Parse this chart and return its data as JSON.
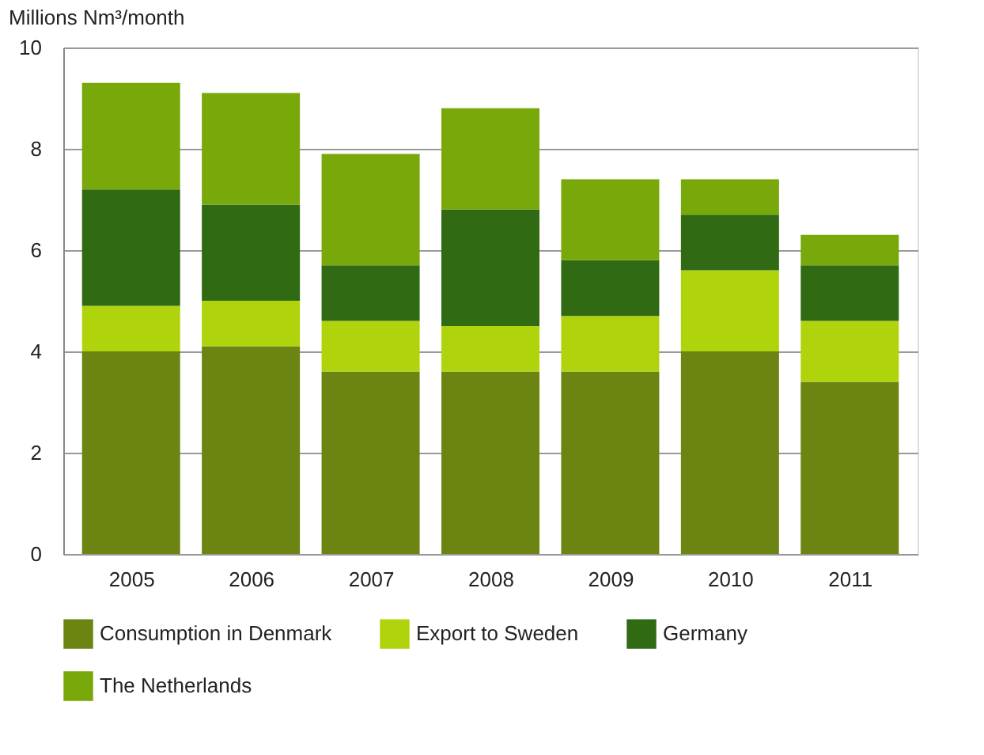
{
  "chart_data": {
    "type": "bar",
    "stacked": true,
    "ylabel": "Millions Nm³/month",
    "categories": [
      "2005",
      "2006",
      "2007",
      "2008",
      "2009",
      "2010",
      "2011"
    ],
    "series": [
      {
        "name": "Consumption in Denmark",
        "color": "#6b8412",
        "values": [
          4.0,
          4.1,
          3.6,
          3.6,
          3.6,
          4.0,
          3.4
        ]
      },
      {
        "name": "Export to Sweden",
        "color": "#b0d40c",
        "values": [
          0.9,
          0.9,
          1.0,
          0.9,
          1.1,
          1.6,
          1.2
        ]
      },
      {
        "name": "Germany",
        "color": "#306a12",
        "values": [
          2.3,
          1.9,
          1.1,
          2.3,
          1.1,
          1.1,
          1.1
        ]
      },
      {
        "name": "The Netherlands",
        "color": "#78a80a",
        "values": [
          2.1,
          2.2,
          2.2,
          2.0,
          1.6,
          0.7,
          0.6
        ]
      }
    ],
    "ylim": [
      0,
      10
    ],
    "yticks": [
      0,
      2,
      4,
      6,
      8,
      10
    ],
    "grid": "y",
    "legend": "bottom"
  }
}
